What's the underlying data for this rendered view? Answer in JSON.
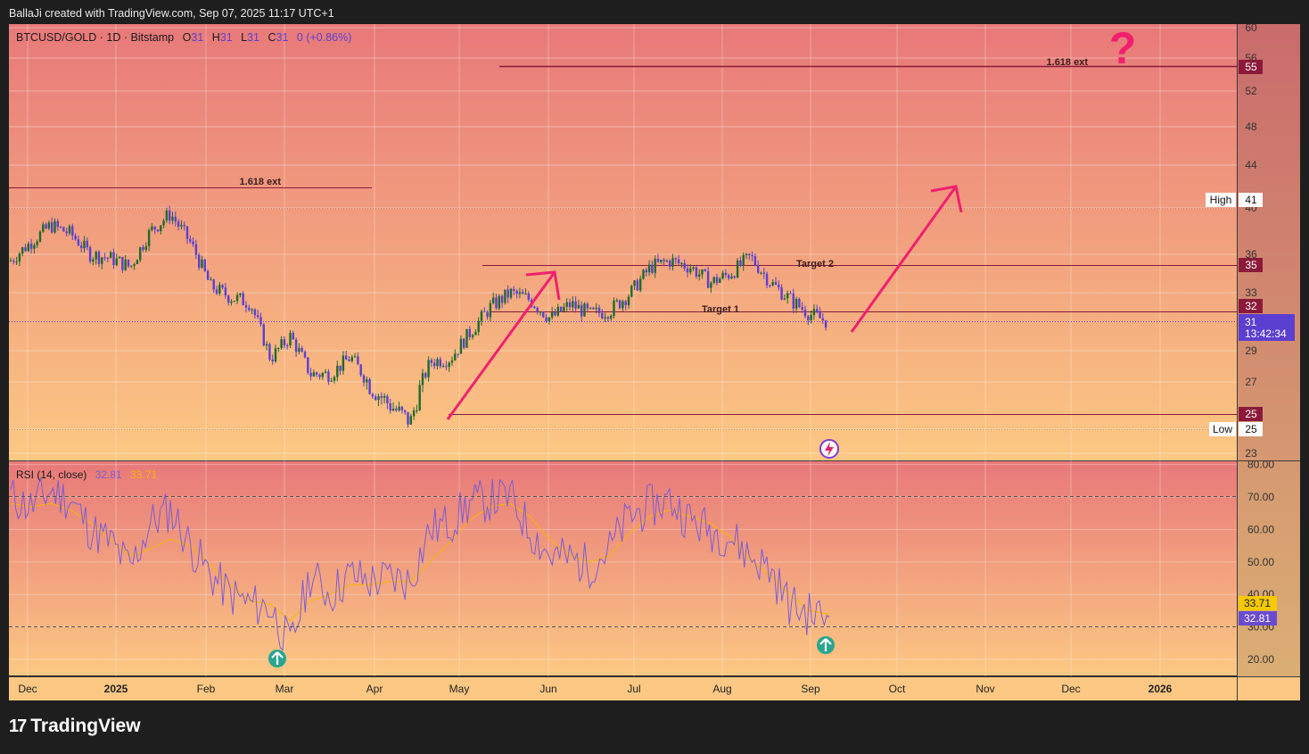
{
  "header": {
    "credit": "BallaJi created with TradingView.com, Sep 07, 2025 11:17 UTC+1"
  },
  "legend": {
    "symbol": "BTCUSD/GOLD · 1D · Bitstamp",
    "o_label": "O",
    "o_value": "31",
    "h_label": "H",
    "h_value": "31",
    "l_label": "L",
    "l_value": "31",
    "c_label": "C",
    "c_value": "31",
    "change": "0 (+0.86%)"
  },
  "rsi_legend": {
    "name": "RSI (14, close)",
    "rsi": "32.81",
    "ma": "33.71"
  },
  "brand": {
    "logo": "17",
    "name": "TradingView"
  },
  "colors": {
    "price_line": "#5b3fd1",
    "up_candle": "#1f6b2a",
    "level_line": "#8b1a3a",
    "arrow": "#f0206e",
    "rsi_line": "#7b5cd6",
    "rsi_ma": "#f5b700",
    "rsi_badge": "#6a4bd0",
    "question": "#f0206e"
  },
  "annotations": {
    "ext_top": "1.618 ext",
    "ext_left": "1.618 ext",
    "target1": "Target 1",
    "target2": "Target 2",
    "question": "?"
  },
  "price_badges": {
    "p55": "55",
    "p35": "35",
    "p32": "32",
    "p25": "25",
    "high_label": "High",
    "high_value": "41",
    "low_label": "Low",
    "low_value": "25",
    "last": "31",
    "countdown": "13:42:34"
  },
  "rsi_badges": {
    "ma": "33.71",
    "rsi": "32.81"
  },
  "chart_data": [
    {
      "type": "candlestick",
      "title": "BTCUSD/GOLD · 1D · Bitstamp",
      "y_ticks": [
        23,
        25,
        27,
        29,
        33,
        36,
        40,
        44,
        48,
        52,
        56,
        60
      ],
      "y_range": [
        23,
        60
      ],
      "x_ticks": [
        "Dec",
        "2025",
        "Feb",
        "Mar",
        "Apr",
        "May",
        "Jun",
        "Jul",
        "Aug",
        "Sep",
        "Oct",
        "Nov",
        "Dec",
        "2026"
      ],
      "horizontal_levels": [
        {
          "label": "1.618 ext",
          "value": 55
        },
        {
          "label": "1.618 ext",
          "value": 41.7
        },
        {
          "label": "Target 2",
          "value": 35
        },
        {
          "label": "Target 1",
          "value": 32
        },
        {
          "label": "",
          "value": 25
        }
      ],
      "close_series": [
        {
          "date": "2024-11-25",
          "close": 35.5
        },
        {
          "date": "2024-12-02",
          "close": 37.0
        },
        {
          "date": "2024-12-09",
          "close": 38.5
        },
        {
          "date": "2024-12-16",
          "close": 37.8
        },
        {
          "date": "2024-12-23",
          "close": 36.0
        },
        {
          "date": "2024-12-30",
          "close": 35.7
        },
        {
          "date": "2025-01-06",
          "close": 35.0
        },
        {
          "date": "2025-01-13",
          "close": 38.0
        },
        {
          "date": "2025-01-20",
          "close": 39.5
        },
        {
          "date": "2025-01-27",
          "close": 37.0
        },
        {
          "date": "2025-02-03",
          "close": 33.5
        },
        {
          "date": "2025-02-10",
          "close": 32.7
        },
        {
          "date": "2025-02-17",
          "close": 32.3
        },
        {
          "date": "2025-02-24",
          "close": 28.5
        },
        {
          "date": "2025-03-03",
          "close": 30.0
        },
        {
          "date": "2025-03-10",
          "close": 27.5
        },
        {
          "date": "2025-03-17",
          "close": 27.5
        },
        {
          "date": "2025-03-24",
          "close": 28.6
        },
        {
          "date": "2025-03-31",
          "close": 26.8
        },
        {
          "date": "2025-04-07",
          "close": 26.0
        },
        {
          "date": "2025-04-14",
          "close": 25.3
        },
        {
          "date": "2025-04-21",
          "close": 28.3
        },
        {
          "date": "2025-04-28",
          "close": 28.5
        },
        {
          "date": "2025-05-05",
          "close": 30.3
        },
        {
          "date": "2025-05-12",
          "close": 32.0
        },
        {
          "date": "2025-05-19",
          "close": 33.0
        },
        {
          "date": "2025-05-26",
          "close": 32.5
        },
        {
          "date": "2025-06-02",
          "close": 31.2
        },
        {
          "date": "2025-06-09",
          "close": 32.2
        },
        {
          "date": "2025-06-16",
          "close": 31.5
        },
        {
          "date": "2025-06-23",
          "close": 31.8
        },
        {
          "date": "2025-06-30",
          "close": 33.0
        },
        {
          "date": "2025-07-07",
          "close": 35.0
        },
        {
          "date": "2025-07-14",
          "close": 35.5
        },
        {
          "date": "2025-07-21",
          "close": 35.0
        },
        {
          "date": "2025-07-28",
          "close": 33.8
        },
        {
          "date": "2025-08-04",
          "close": 34.5
        },
        {
          "date": "2025-08-11",
          "close": 35.8
        },
        {
          "date": "2025-08-18",
          "close": 33.8
        },
        {
          "date": "2025-08-25",
          "close": 32.5
        },
        {
          "date": "2025-09-01",
          "close": 31.5
        },
        {
          "date": "2025-09-07",
          "close": 31.0
        }
      ],
      "last_price": 31
    },
    {
      "type": "line",
      "title": "RSI (14, close)",
      "y_ticks": [
        20,
        30,
        40,
        50,
        60,
        70,
        80
      ],
      "y_range": [
        16,
        81
      ],
      "series": [
        {
          "name": "RSI",
          "values": [
            70,
            67,
            72,
            69,
            60,
            56,
            48,
            62,
            66,
            55,
            46,
            40,
            37,
            36,
            24,
            46,
            40,
            46,
            44,
            45,
            44,
            60,
            62,
            68,
            69,
            70,
            60,
            52,
            51,
            49,
            54,
            64,
            67,
            69,
            63,
            60,
            58,
            52,
            48,
            37,
            34,
            33
          ]
        },
        {
          "name": "MA",
          "values": [
            68,
            67,
            68,
            66,
            62,
            57,
            52,
            54,
            57,
            55,
            49,
            43,
            38,
            37,
            32,
            38,
            40,
            43,
            43,
            44,
            44,
            50,
            56,
            63,
            67,
            68,
            64,
            57,
            52,
            50,
            52,
            59,
            64,
            66,
            64,
            62,
            58,
            51,
            46,
            40,
            35,
            34
          ]
        }
      ]
    }
  ]
}
